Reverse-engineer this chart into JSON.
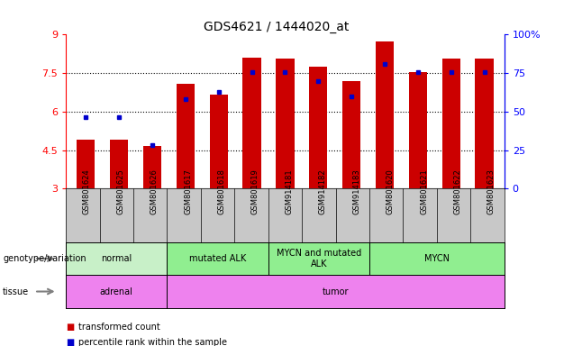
{
  "title": "GDS4621 / 1444020_at",
  "samples": [
    "GSM801624",
    "GSM801625",
    "GSM801626",
    "GSM801617",
    "GSM801618",
    "GSM801619",
    "GSM914181",
    "GSM914182",
    "GSM914183",
    "GSM801620",
    "GSM801621",
    "GSM801622",
    "GSM801623"
  ],
  "red_values": [
    4.9,
    4.9,
    4.65,
    7.1,
    6.65,
    8.1,
    8.05,
    7.75,
    7.2,
    8.75,
    7.55,
    8.05,
    8.05
  ],
  "blue_values": [
    5.8,
    5.8,
    4.7,
    6.5,
    6.75,
    7.55,
    7.55,
    7.2,
    6.6,
    7.85,
    7.55,
    7.55,
    7.55
  ],
  "ylim": [
    3,
    9
  ],
  "y_ticks_left": [
    3,
    4.5,
    6,
    7.5,
    9
  ],
  "y_ticks_right": [
    0,
    25,
    50,
    75,
    100
  ],
  "ytick_labels_left": [
    "3",
    "4.5",
    "6",
    "7.5",
    "9"
  ],
  "ytick_labels_right": [
    "0",
    "25",
    "50",
    "75",
    "100%"
  ],
  "dotted_lines": [
    4.5,
    6.0,
    7.5
  ],
  "bar_color": "#cc0000",
  "dot_color": "#0000cc",
  "bar_width": 0.55,
  "geno_groups": [
    {
      "label": "normal",
      "start": 0,
      "end": 3,
      "color": "#c8f0c8"
    },
    {
      "label": "mutated ALK",
      "start": 3,
      "end": 6,
      "color": "#90ee90"
    },
    {
      "label": "MYCN and mutated\nALK",
      "start": 6,
      "end": 9,
      "color": "#90ee90"
    },
    {
      "label": "MYCN",
      "start": 9,
      "end": 13,
      "color": "#90ee90"
    }
  ],
  "tissue_groups": [
    {
      "label": "adrenal",
      "start": 0,
      "end": 3,
      "color": "#ee82ee"
    },
    {
      "label": "tumor",
      "start": 3,
      "end": 13,
      "color": "#ee82ee"
    }
  ],
  "genotype_label": "genotype/variation",
  "tissue_label": "tissue",
  "legend_items": [
    {
      "label": "transformed count",
      "color": "#cc0000"
    },
    {
      "label": "percentile rank within the sample",
      "color": "#0000cc"
    }
  ],
  "tick_bg_color": "#c8c8c8"
}
